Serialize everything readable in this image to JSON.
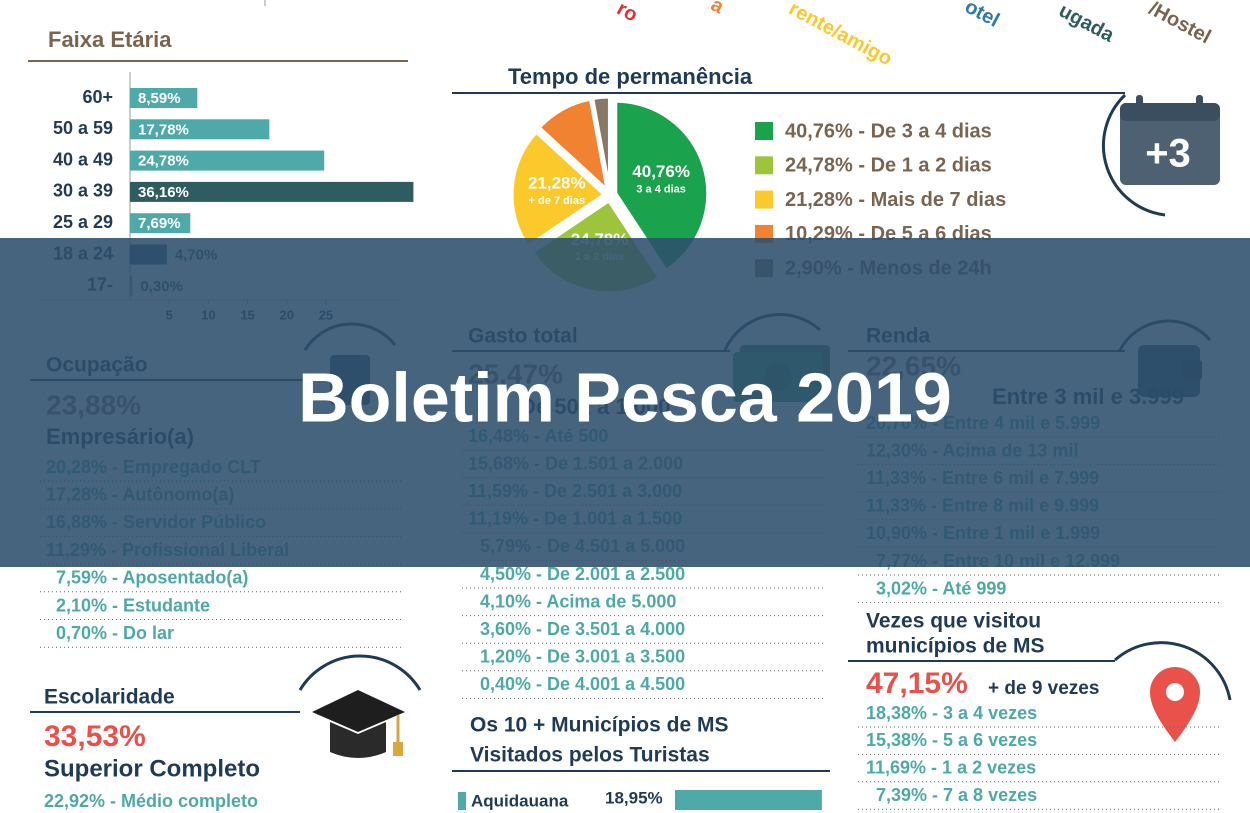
{
  "top_labels": [
    "ro",
    "a",
    "rente/amigo",
    "otel",
    "ugada",
    "/Hostel"
  ],
  "chart_data": [
    {
      "type": "bar",
      "orientation": "horizontal",
      "title": "Faixa Etária",
      "categories": [
        "60+",
        "50 a 59",
        "40 a 49",
        "30 a 39",
        "25 a 29",
        "18 a 24",
        "17-"
      ],
      "values": [
        8.59,
        17.78,
        24.78,
        36.16,
        7.69,
        4.7,
        0.3
      ],
      "value_labels": [
        "8,59%",
        "17,78%",
        "24,78%",
        "36,16%",
        "7,69%",
        "4,70%",
        "0,30%"
      ],
      "colors": [
        "#4fa9a9",
        "#4fa9a9",
        "#4fa9a9",
        "#2f5c60",
        "#4fa9a9",
        "#2f5f7c",
        "#9a9a9a"
      ],
      "xlim": [
        0,
        37
      ],
      "xticks": [
        5,
        10,
        15,
        20,
        25
      ]
    },
    {
      "type": "pie",
      "title": "Tempo de permanência",
      "values": [
        40.76,
        24.78,
        21.28,
        10.29,
        2.9
      ],
      "value_labels": [
        "40,76%",
        "24,78%",
        "21,28%",
        "10,29%",
        "2,90%"
      ],
      "legend": [
        "40,76% - De 3 a 4 dias",
        "24,78% - De 1 a 2 dias",
        "21,28% - Mais de 7 dias",
        "10,29% - De 5 a 6 dias",
        "2,90% - Menos de 24h"
      ],
      "slice_captions": [
        "3 a 4 dias",
        "1 a 2 dias",
        "+ de 7 dias",
        null,
        null
      ],
      "colors": [
        "#1ba24c",
        "#9cc43d",
        "#fcc92c",
        "#f08232",
        "#8a7866"
      ]
    },
    {
      "type": "bar",
      "orientation": "horizontal",
      "title": [
        "Os 10 + Municípios de MS",
        "Visitados pelos Turistas"
      ],
      "categories": [
        "Aquidauana"
      ],
      "values": [
        18.95
      ],
      "value_labels": [
        "18,95%"
      ],
      "color": "#4fa9a9"
    }
  ],
  "calendar_icon": "+3",
  "ocupacao": {
    "title": "Ocupação",
    "highlight": "23,88%",
    "highlight_label": "Empresário(a)",
    "items": [
      "20,28% - Empregado CLT",
      "17,28% - Autônomo(a)",
      "16,88% - Servidor Público",
      "11,29% - Profissional Liberal",
      "7,59% - Aposentado(a)",
      "2,10% - Estudante",
      "0,70% - Do lar"
    ]
  },
  "gasto_total": {
    "title": "Gasto total",
    "highlight": "25,47%",
    "highlight_label": "De 501 a 1.000",
    "items": [
      "16,48% - Até 500",
      "15,68% - De 1.501 a 2.000",
      "11,59% - De 2.501 a 3.000",
      "11,19% - De 1.001 a 1.500",
      "5,79% - De 4.501 a 5.000",
      "4,50% - De 2.001 a 2.500",
      "4,10% - Acima de 5.000",
      "3,60% - De 3.501 a 4.000",
      "1,20% - De 3.001 a 3.500",
      "0,40% - De 4.001 a 4.500"
    ]
  },
  "renda": {
    "title": "Renda",
    "highlight": "22,65%",
    "highlight_label": "Entre 3 mil e 3.999",
    "items": [
      "20,70% - Entre 4 mil e 5.999",
      "12,30% - Acima de 13 mil",
      "11,33% - Entre 6 mil e 7.999",
      "11,33% - Entre 8 mil e 9.999",
      "10,90% - Entre 1 mil e 1.999",
      "7,77% - Entre 10 mil e 12.999",
      "3,02% - Até 999"
    ]
  },
  "vezes": {
    "title": [
      "Vezes que visitou",
      "municípios de MS"
    ],
    "highlight": "47,15%",
    "highlight_label": "+ de 9 vezes",
    "items": [
      "18,38% - 3 a 4 vezes",
      "15,38% - 5 a 6 vezes",
      "11,69% - 1 a 2 vezes",
      "7,39% - 7 a 8 vezes"
    ]
  },
  "escolaridade": {
    "title": "Escolaridade",
    "highlight": "33,53%",
    "highlight_label": "Superior Completo",
    "items": [
      "22,92% - Médio completo"
    ]
  },
  "banner": "Boletim Pesca 2019"
}
